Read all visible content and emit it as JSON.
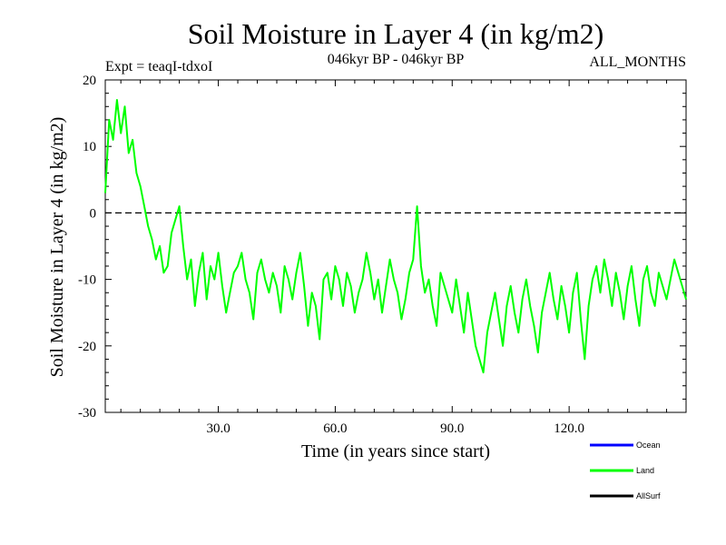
{
  "chart_data": {
    "type": "line",
    "title": "Soil Moisture in Layer 4 (in kg/m2)",
    "subtitle_left": "Expt = teaqI-tdxoI",
    "subtitle_center": "046kyr BP - 046kyr BP",
    "subtitle_right": "ALL_MONTHS",
    "xlabel": "Time (in years since start)",
    "ylabel": "Soil Moisture in Layer 4 (in kg/m2)",
    "xlim": [
      1,
      150
    ],
    "ylim": [
      -30,
      20
    ],
    "x_ticks": [
      30,
      60,
      90,
      120
    ],
    "x_tick_labels": [
      "30.0",
      "60.0",
      "90.0",
      "120.0"
    ],
    "y_ticks": [
      -30,
      -20,
      -10,
      0,
      10,
      20
    ],
    "y_tick_labels": [
      "-30",
      "-20",
      "-10",
      "0",
      "10",
      "20"
    ],
    "zero_line": true,
    "legend": [
      {
        "name": "Ocean",
        "color": "#0000ff"
      },
      {
        "name": "Land",
        "color": "#00ff00"
      },
      {
        "name": "AllSurf",
        "color": "#000000"
      }
    ],
    "series": [
      {
        "name": "Land",
        "color": "#00ff00",
        "x": [
          1,
          2,
          3,
          4,
          5,
          6,
          7,
          8,
          9,
          10,
          11,
          12,
          13,
          14,
          15,
          16,
          17,
          18,
          19,
          20,
          21,
          22,
          23,
          24,
          25,
          26,
          27,
          28,
          29,
          30,
          31,
          32,
          33,
          34,
          35,
          36,
          37,
          38,
          39,
          40,
          41,
          42,
          43,
          44,
          45,
          46,
          47,
          48,
          49,
          50,
          51,
          52,
          53,
          54,
          55,
          56,
          57,
          58,
          59,
          60,
          61,
          62,
          63,
          64,
          65,
          66,
          67,
          68,
          69,
          70,
          71,
          72,
          73,
          74,
          75,
          76,
          77,
          78,
          79,
          80,
          81,
          82,
          83,
          84,
          85,
          86,
          87,
          88,
          89,
          90,
          91,
          92,
          93,
          94,
          95,
          96,
          97,
          98,
          99,
          100,
          101,
          102,
          103,
          104,
          105,
          106,
          107,
          108,
          109,
          110,
          111,
          112,
          113,
          114,
          115,
          116,
          117,
          118,
          119,
          120,
          121,
          122,
          123,
          124,
          125,
          126,
          127,
          128,
          129,
          130,
          131,
          132,
          133,
          134,
          135,
          136,
          137,
          138,
          139,
          140,
          141,
          142,
          143,
          144,
          145,
          146,
          147,
          148,
          149,
          150
        ],
        "values": [
          3,
          14,
          11,
          17,
          12,
          16,
          9,
          11,
          6,
          4,
          1,
          -2,
          -4,
          -7,
          -5,
          -9,
          -8,
          -3,
          -1,
          1,
          -5,
          -10,
          -7,
          -14,
          -9,
          -6,
          -13,
          -8,
          -10,
          -6,
          -11,
          -15,
          -12,
          -9,
          -8,
          -6,
          -10,
          -12,
          -16,
          -9,
          -7,
          -10,
          -12,
          -9,
          -11,
          -15,
          -8,
          -10,
          -13,
          -9,
          -6,
          -11,
          -17,
          -12,
          -14,
          -19,
          -10,
          -9,
          -13,
          -8,
          -10,
          -14,
          -9,
          -11,
          -15,
          -12,
          -10,
          -6,
          -9,
          -13,
          -10,
          -15,
          -11,
          -7,
          -10,
          -12,
          -16,
          -13,
          -9,
          -7,
          1,
          -8,
          -12,
          -10,
          -14,
          -17,
          -9,
          -11,
          -13,
          -15,
          -10,
          -14,
          -18,
          -12,
          -16,
          -20,
          -22,
          -24,
          -18,
          -15,
          -12,
          -16,
          -20,
          -14,
          -11,
          -15,
          -18,
          -13,
          -10,
          -14,
          -17,
          -21,
          -15,
          -12,
          -9,
          -13,
          -16,
          -11,
          -14,
          -18,
          -12,
          -9,
          -16,
          -22,
          -14,
          -10,
          -8,
          -12,
          -7,
          -10,
          -14,
          -9,
          -12,
          -16,
          -11,
          -8,
          -13,
          -17,
          -10,
          -8,
          -12,
          -14,
          -9,
          -11,
          -13,
          -10,
          -7,
          -9,
          -11,
          -13
        ]
      }
    ]
  }
}
